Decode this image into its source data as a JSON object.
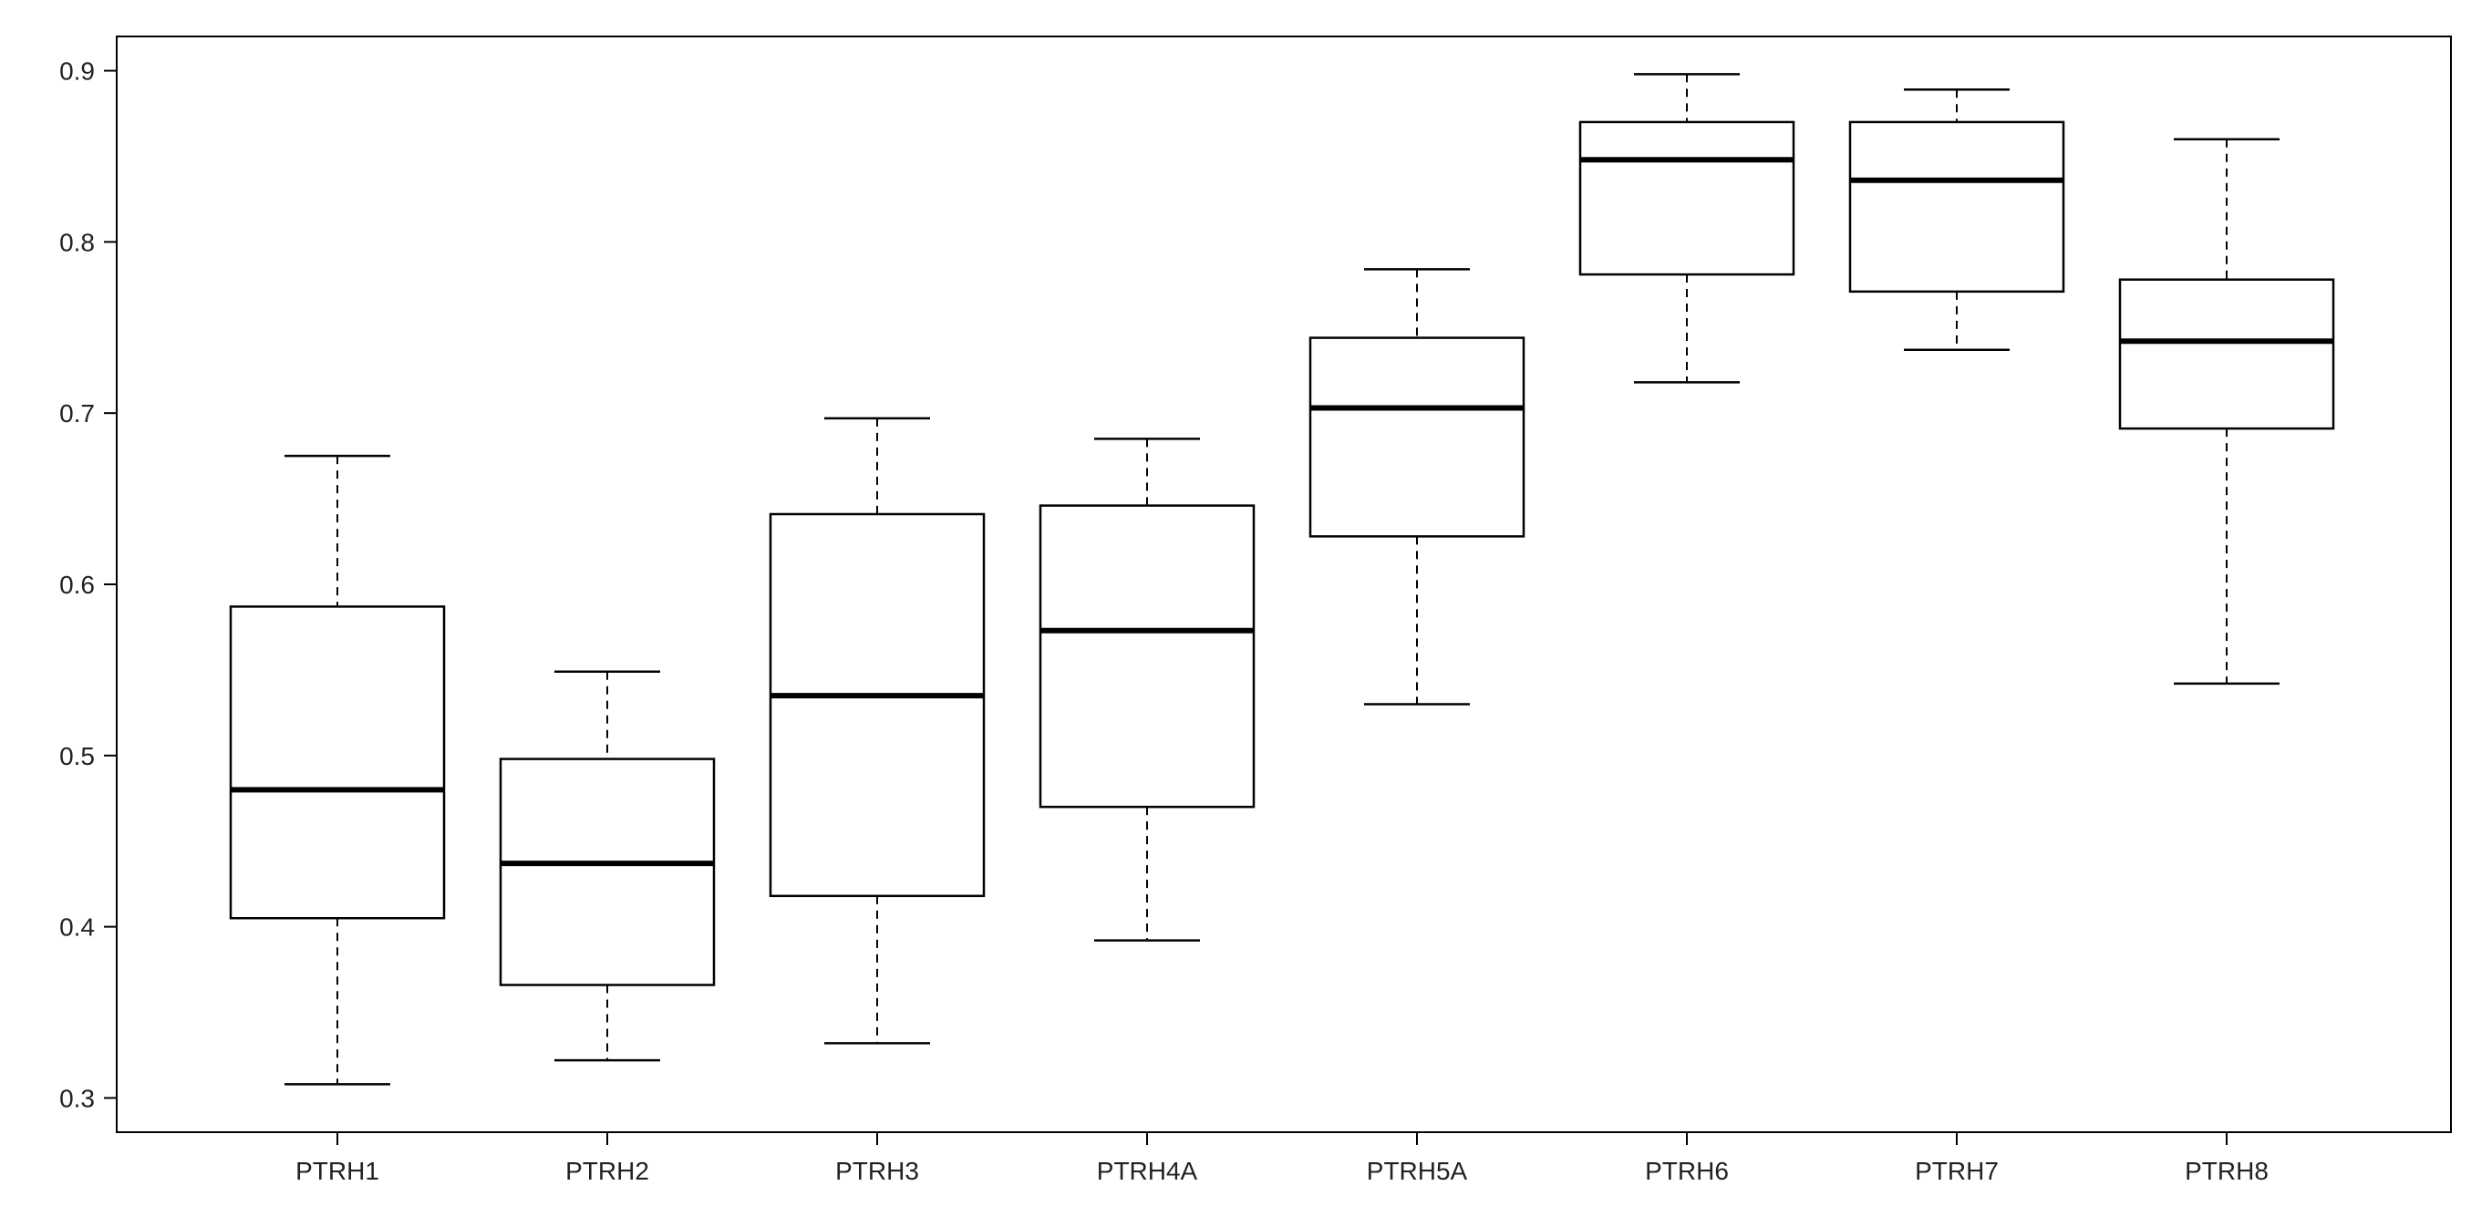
{
  "chart_data": {
    "type": "boxplot",
    "title": "",
    "xlabel": "",
    "ylabel": "",
    "ylim": [
      0.28,
      0.92
    ],
    "yticks": [
      0.3,
      0.4,
      0.5,
      0.6,
      0.7,
      0.8,
      0.9
    ],
    "ytick_labels": [
      "0.3",
      "0.4",
      "0.5",
      "0.6",
      "0.7",
      "0.8",
      "0.9"
    ],
    "grid": false,
    "legend": "none",
    "categories": [
      "PTRH1",
      "PTRH2",
      "PTRH3",
      "PTRH4A",
      "PTRH5A",
      "PTRH6",
      "PTRH7",
      "PTRH8"
    ],
    "boxes": [
      {
        "min": 0.308,
        "q1": 0.405,
        "median": 0.48,
        "q3": 0.587,
        "max": 0.675
      },
      {
        "min": 0.322,
        "q1": 0.366,
        "median": 0.437,
        "q3": 0.498,
        "max": 0.549
      },
      {
        "min": 0.332,
        "q1": 0.418,
        "median": 0.535,
        "q3": 0.641,
        "max": 0.697
      },
      {
        "min": 0.392,
        "q1": 0.47,
        "median": 0.573,
        "q3": 0.646,
        "max": 0.685
      },
      {
        "min": 0.53,
        "q1": 0.628,
        "median": 0.703,
        "q3": 0.744,
        "max": 0.784
      },
      {
        "min": 0.718,
        "q1": 0.781,
        "median": 0.848,
        "q3": 0.87,
        "max": 0.898
      },
      {
        "min": 0.737,
        "q1": 0.771,
        "median": 0.836,
        "q3": 0.87,
        "max": 0.889
      },
      {
        "min": 0.542,
        "q1": 0.691,
        "median": 0.742,
        "q3": 0.778,
        "max": 0.86
      }
    ],
    "colors": {
      "stroke": "#000000",
      "fill": "#ffffff",
      "text": "#222222"
    }
  }
}
